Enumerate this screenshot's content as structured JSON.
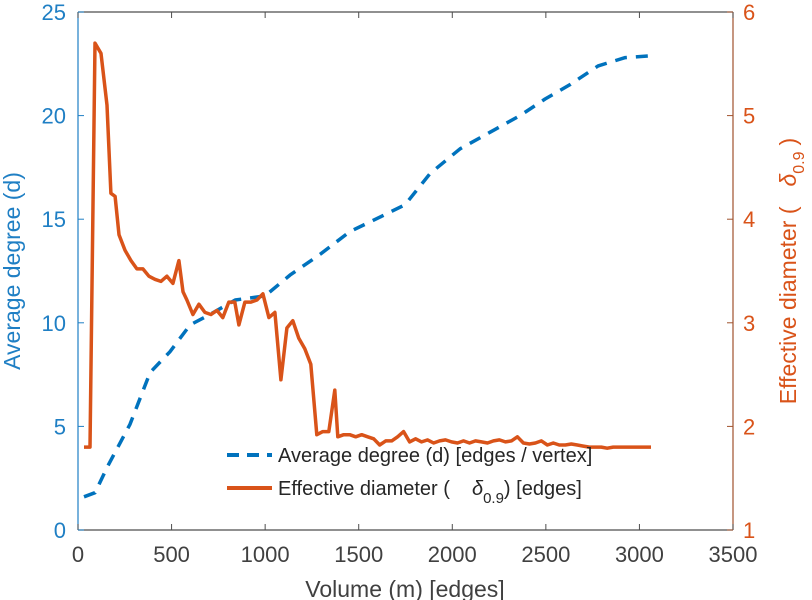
{
  "chart_data": {
    "type": "line",
    "title": "",
    "xlabel": "Volume (m) [edges]",
    "ylabel_left": "Average degree (d)",
    "ylabel_right_prefix": "Effective diameter (",
    "ylabel_right_symbol": "δ",
    "ylabel_right_subscript": "0.9",
    "ylabel_right_suffix": ")",
    "xlim": [
      0,
      3500
    ],
    "ylim_left": [
      0,
      25
    ],
    "ylim_right": [
      1,
      6
    ],
    "xticks": [
      "0",
      "500",
      "1000",
      "1500",
      "2000",
      "2500",
      "3000",
      "3500"
    ],
    "yticks_left": [
      "0",
      "5",
      "10",
      "15",
      "20",
      "25"
    ],
    "yticks_right": [
      "1",
      "2",
      "3",
      "4",
      "5",
      "6"
    ],
    "grid": false,
    "legend_position": "bottom-right",
    "colors": {
      "left_axis": "#1f7fc4",
      "right_axis": "#d95319",
      "degree_line": "#0072bd",
      "diameter_line": "#d95319"
    },
    "series": [
      {
        "name": "Average degree (d) [edges / vertex]",
        "legend_label": "Average degree (d) [edges / vertex]",
        "axis": "left",
        "style": "dashed",
        "x": [
          32,
          91,
          160,
          278,
          385,
          491,
          599,
          705,
          840,
          1000,
          1133,
          1293,
          1453,
          1614,
          1748,
          1881,
          2042,
          2202,
          2362,
          2496,
          2630,
          2779,
          2924,
          3083
        ],
        "y": [
          1.6,
          1.8,
          3.1,
          5.1,
          7.6,
          8.6,
          9.9,
          10.4,
          11.1,
          11.3,
          12.3,
          13.3,
          14.4,
          15.1,
          15.7,
          17.2,
          18.4,
          19.2,
          20.0,
          20.8,
          21.5,
          22.4,
          22.8,
          22.9
        ]
      },
      {
        "name": "Effective diameter (δ0.9) [edges]",
        "legend_prefix": "Effective diameter (",
        "legend_symbol": "δ",
        "legend_subscript": "0.9",
        "legend_suffix": ") [edges]",
        "axis": "right",
        "style": "solid",
        "x": [
          32,
          64,
          91,
          123,
          155,
          176,
          198,
          219,
          251,
          283,
          315,
          347,
          379,
          411,
          443,
          475,
          507,
          539,
          561,
          582,
          614,
          646,
          678,
          710,
          742,
          774,
          806,
          838,
          860,
          892,
          924,
          956,
          988,
          1020,
          1052,
          1084,
          1116,
          1148,
          1180,
          1212,
          1244,
          1276,
          1308,
          1340,
          1372,
          1388,
          1420,
          1452,
          1484,
          1516,
          1548,
          1580,
          1612,
          1644,
          1676,
          1708,
          1740,
          1772,
          1804,
          1836,
          1868,
          1900,
          1932,
          1964,
          1996,
          2028,
          2060,
          2092,
          2124,
          2156,
          2188,
          2220,
          2252,
          2284,
          2316,
          2348,
          2380,
          2412,
          2444,
          2476,
          2508,
          2540,
          2572,
          2604,
          2636,
          2668,
          2700,
          2732,
          2764,
          2796,
          2828,
          2860,
          2892,
          2924,
          2956,
          2988,
          3020,
          3062
        ],
        "y": [
          1.8,
          1.8,
          5.7,
          5.6,
          5.1,
          4.25,
          4.22,
          3.85,
          3.7,
          3.6,
          3.52,
          3.52,
          3.45,
          3.42,
          3.4,
          3.45,
          3.38,
          3.6,
          3.3,
          3.22,
          3.08,
          3.18,
          3.1,
          3.08,
          3.12,
          3.05,
          3.2,
          3.2,
          2.98,
          3.2,
          3.2,
          3.22,
          3.28,
          3.05,
          3.1,
          2.45,
          2.95,
          3.02,
          2.85,
          2.75,
          2.6,
          1.92,
          1.95,
          1.95,
          2.35,
          1.9,
          1.92,
          1.92,
          1.9,
          1.92,
          1.9,
          1.88,
          1.82,
          1.86,
          1.86,
          1.9,
          1.95,
          1.85,
          1.88,
          1.85,
          1.87,
          1.84,
          1.86,
          1.87,
          1.85,
          1.84,
          1.86,
          1.84,
          1.86,
          1.85,
          1.84,
          1.86,
          1.87,
          1.85,
          1.86,
          1.9,
          1.84,
          1.83,
          1.84,
          1.86,
          1.82,
          1.84,
          1.82,
          1.82,
          1.83,
          1.82,
          1.81,
          1.8,
          1.8,
          1.8,
          1.79,
          1.8,
          1.8,
          1.8,
          1.8,
          1.8,
          1.8,
          1.8
        ]
      }
    ]
  }
}
